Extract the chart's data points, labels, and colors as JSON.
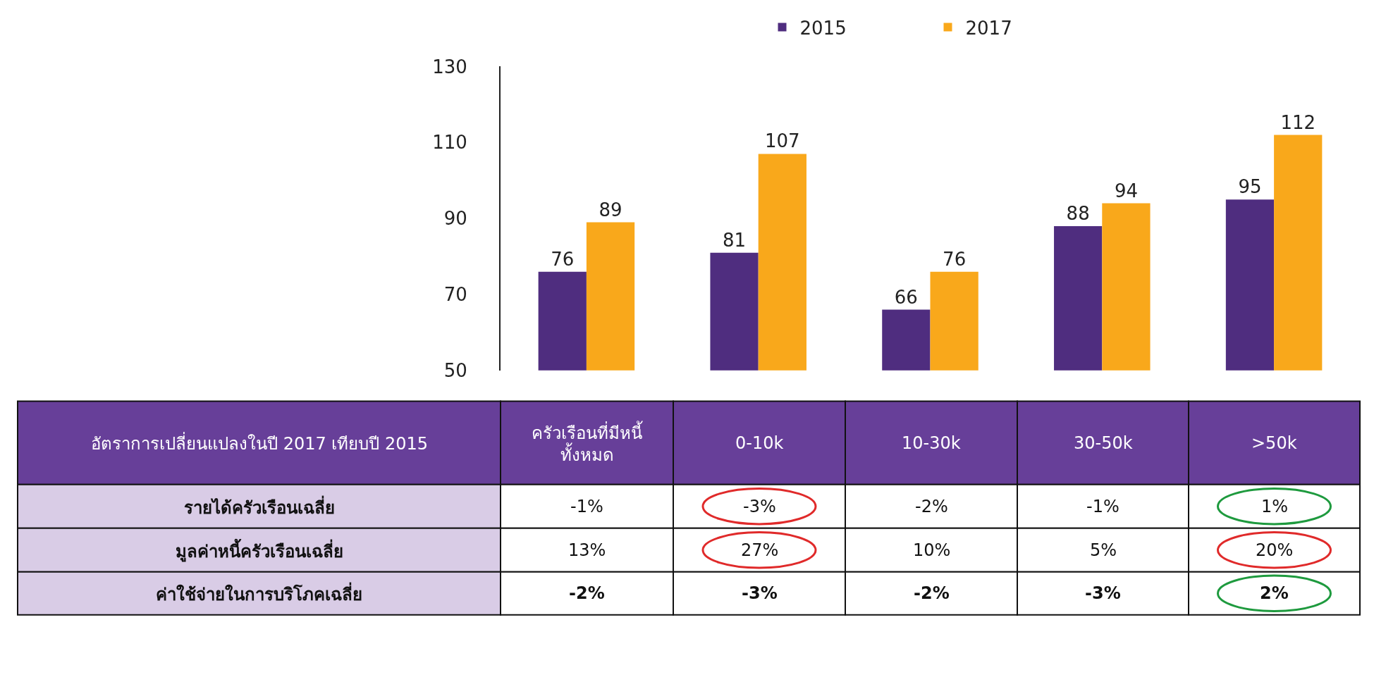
{
  "chart_data": [
    {
      "type": "bar",
      "categories": [
        null,
        null,
        null,
        null,
        null
      ],
      "series": [
        {
          "name": "2015",
          "color": "#4f2d7f",
          "values": [
            76,
            81,
            66,
            88,
            95
          ]
        },
        {
          "name": "2017",
          "color": "#f9a81b",
          "values": [
            89,
            107,
            76,
            94,
            112
          ]
        }
      ],
      "ylim": [
        50,
        130
      ],
      "yticks": [
        50,
        70,
        90,
        110,
        130
      ],
      "data_labels": true,
      "legend": "top",
      "tick_labels": "y"
    },
    {
      "type": "other",
      "title": "อัตราการเปลี่ยนแปลงในปี 2017 เทียบปี 2015",
      "categories": [
        "ครัวเรือนที่มีหนี้\nทั้งหมด",
        "0-10k",
        "10-30k",
        "30-50k",
        ">50k"
      ],
      "y_categories": [
        "รายได้ครัวเรือนเฉลี่ย",
        "มูลค่าหนี้ครัวเรือนเฉลี่ย",
        "ค่าใช้จ่ายในการบริโภคเฉลี่ย"
      ],
      "cell_labels": [
        [
          "-1%",
          "-3%",
          "-2%",
          "-1%",
          "1%"
        ],
        [
          "13%",
          "27%",
          "10%",
          "5%",
          "20%"
        ],
        [
          "-2%",
          "-3%",
          "-2%",
          "-3%",
          "2%"
        ]
      ],
      "colors": [
        [
          null,
          "#e02a2a",
          null,
          null,
          "#1e9a3e"
        ],
        [
          null,
          "#e02a2a",
          null,
          null,
          "#e02a2a"
        ],
        [
          null,
          null,
          null,
          null,
          "#1e9a3e"
        ]
      ]
    }
  ]
}
